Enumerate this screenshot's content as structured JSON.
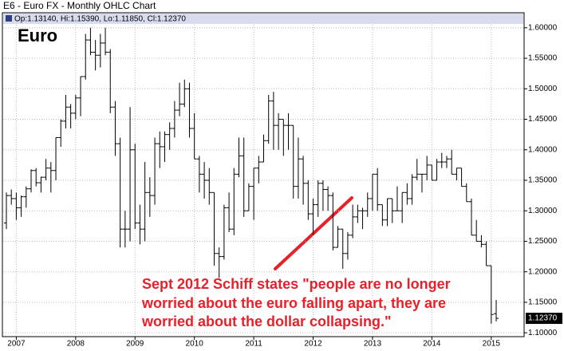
{
  "chart_data": {
    "type": "ohlc",
    "title": "E6 - Euro FX - Monthly OHLC Chart",
    "info": "Op:1.13140, Hi:1.15390, Lo:1.11850, Cl:1.12370",
    "label": "Euro",
    "annotation": [
      "Sept 2012 Schiff states \"people are no longer",
      "worried about the euro falling apart, they are",
      "worried about the dollar collapsing.\""
    ],
    "color": "#000000",
    "grid": true,
    "last_price": {
      "value": 1.1237,
      "label": "1.12370"
    },
    "ylim": [
      1.095,
      1.605
    ],
    "yticks": [
      {
        "value": 1.1,
        "label": "1.10000"
      },
      {
        "value": 1.15,
        "label": "1.15000"
      },
      {
        "value": 1.2,
        "label": "1.20000"
      },
      {
        "value": 1.25,
        "label": "1.25000"
      },
      {
        "value": 1.3,
        "label": "1.30000"
      },
      {
        "value": 1.35,
        "label": "1.35000"
      },
      {
        "value": 1.4,
        "label": "1.40000"
      },
      {
        "value": 1.45,
        "label": "1.45000"
      },
      {
        "value": 1.5,
        "label": "1.50000"
      },
      {
        "value": 1.55,
        "label": "1.55000"
      },
      {
        "value": 1.6,
        "label": "1.60000"
      }
    ],
    "categories": [
      null,
      null,
      "2007",
      null,
      null,
      null,
      null,
      null,
      null,
      null,
      null,
      null,
      null,
      null,
      "2008",
      null,
      null,
      null,
      null,
      null,
      null,
      null,
      null,
      null,
      null,
      null,
      "2009",
      null,
      null,
      null,
      null,
      null,
      null,
      null,
      null,
      null,
      null,
      null,
      "2010",
      null,
      null,
      null,
      null,
      null,
      null,
      null,
      null,
      null,
      null,
      null,
      "2011",
      null,
      null,
      null,
      null,
      null,
      null,
      null,
      null,
      null,
      null,
      null,
      "2012",
      null,
      null,
      null,
      null,
      null,
      null,
      null,
      null,
      null,
      null,
      null,
      "2013",
      null,
      null,
      null,
      null,
      null,
      null,
      null,
      null,
      null,
      null,
      null,
      "2014",
      null,
      null,
      null,
      null,
      null,
      null,
      null,
      null,
      null,
      null,
      null,
      "2015",
      null
    ],
    "open": [
      1.28,
      1.325,
      1.32,
      1.305,
      1.323,
      1.336,
      1.366,
      1.346,
      1.355,
      1.37,
      1.366,
      1.42,
      1.447,
      1.47,
      1.46,
      1.485,
      1.52,
      1.58,
      1.56,
      1.555,
      1.575,
      1.56,
      1.47,
      1.41,
      1.27,
      1.27,
      1.4,
      1.28,
      1.27,
      1.33,
      1.325,
      1.41,
      1.405,
      1.425,
      1.435,
      1.465,
      1.475,
      1.5,
      1.435,
      1.385,
      1.36,
      1.35,
      1.33,
      1.23,
      1.225,
      1.305,
      1.27,
      1.36,
      1.39,
      1.3,
      1.34,
      1.37,
      1.38,
      1.415,
      1.48,
      1.44,
      1.45,
      1.44,
      1.44,
      1.34,
      1.385,
      1.345,
      1.295,
      1.31,
      1.345,
      1.335,
      1.325,
      1.24,
      1.27,
      1.23,
      1.26,
      1.29,
      1.3,
      1.3,
      1.32,
      1.36,
      1.31,
      1.285,
      1.32,
      1.3,
      1.3,
      1.33,
      1.32,
      1.355,
      1.36,
      1.36,
      1.375,
      1.35,
      1.38,
      1.38,
      1.385,
      1.36,
      1.37,
      1.34,
      1.315,
      1.26,
      1.25,
      1.245,
      1.21,
      1.1314
    ],
    "high": [
      1.33,
      1.335,
      1.33,
      1.325,
      1.34,
      1.368,
      1.37,
      1.356,
      1.385,
      1.38,
      1.42,
      1.45,
      1.49,
      1.475,
      1.49,
      1.52,
      1.59,
      1.6,
      1.58,
      1.59,
      1.6,
      1.565,
      1.48,
      1.42,
      1.3,
      1.47,
      1.41,
      1.31,
      1.38,
      1.355,
      1.42,
      1.43,
      1.43,
      1.445,
      1.48,
      1.51,
      1.515,
      1.51,
      1.46,
      1.39,
      1.38,
      1.37,
      1.33,
      1.24,
      1.31,
      1.33,
      1.37,
      1.42,
      1.42,
      1.345,
      1.37,
      1.39,
      1.425,
      1.49,
      1.495,
      1.46,
      1.45,
      1.46,
      1.44,
      1.42,
      1.39,
      1.35,
      1.32,
      1.35,
      1.35,
      1.34,
      1.33,
      1.275,
      1.27,
      1.265,
      1.31,
      1.31,
      1.305,
      1.33,
      1.36,
      1.37,
      1.31,
      1.32,
      1.32,
      1.34,
      1.33,
      1.345,
      1.36,
      1.385,
      1.36,
      1.39,
      1.375,
      1.385,
      1.395,
      1.39,
      1.4,
      1.37,
      1.37,
      1.345,
      1.32,
      1.285,
      1.26,
      1.25,
      1.21,
      1.1539
    ],
    "low": [
      1.27,
      1.31,
      1.285,
      1.29,
      1.305,
      1.33,
      1.34,
      1.33,
      1.35,
      1.33,
      1.35,
      1.405,
      1.435,
      1.435,
      1.45,
      1.455,
      1.515,
      1.555,
      1.53,
      1.535,
      1.555,
      1.46,
      1.39,
      1.24,
      1.24,
      1.25,
      1.27,
      1.245,
      1.25,
      1.29,
      1.31,
      1.37,
      1.38,
      1.4,
      1.42,
      1.455,
      1.47,
      1.42,
      1.385,
      1.33,
      1.32,
      1.31,
      1.21,
      1.19,
      1.22,
      1.265,
      1.26,
      1.355,
      1.29,
      1.3,
      1.285,
      1.345,
      1.38,
      1.41,
      1.4,
      1.4,
      1.39,
      1.4,
      1.32,
      1.32,
      1.31,
      1.285,
      1.26,
      1.29,
      1.3,
      1.3,
      1.235,
      1.24,
      1.205,
      1.22,
      1.255,
      1.28,
      1.27,
      1.29,
      1.3,
      1.3,
      1.275,
      1.275,
      1.28,
      1.3,
      1.28,
      1.31,
      1.31,
      1.35,
      1.33,
      1.35,
      1.35,
      1.35,
      1.37,
      1.37,
      1.36,
      1.35,
      1.34,
      1.315,
      1.26,
      1.25,
      1.24,
      1.21,
      1.115,
      1.1185
    ],
    "close": [
      1.325,
      1.32,
      1.305,
      1.323,
      1.336,
      1.366,
      1.346,
      1.355,
      1.37,
      1.366,
      1.42,
      1.447,
      1.47,
      1.46,
      1.485,
      1.52,
      1.58,
      1.56,
      1.555,
      1.575,
      1.56,
      1.47,
      1.41,
      1.27,
      1.27,
      1.4,
      1.28,
      1.27,
      1.33,
      1.325,
      1.41,
      1.405,
      1.425,
      1.435,
      1.465,
      1.475,
      1.5,
      1.435,
      1.385,
      1.36,
      1.35,
      1.33,
      1.23,
      1.225,
      1.305,
      1.27,
      1.36,
      1.39,
      1.3,
      1.34,
      1.37,
      1.38,
      1.415,
      1.48,
      1.44,
      1.45,
      1.44,
      1.44,
      1.34,
      1.385,
      1.345,
      1.295,
      1.31,
      1.345,
      1.335,
      1.325,
      1.24,
      1.27,
      1.23,
      1.26,
      1.29,
      1.3,
      1.3,
      1.32,
      1.36,
      1.31,
      1.285,
      1.32,
      1.3,
      1.3,
      1.33,
      1.32,
      1.355,
      1.36,
      1.36,
      1.375,
      1.35,
      1.38,
      1.38,
      1.385,
      1.36,
      1.37,
      1.34,
      1.315,
      1.26,
      1.25,
      1.245,
      1.21,
      1.13,
      1.1237
    ]
  }
}
